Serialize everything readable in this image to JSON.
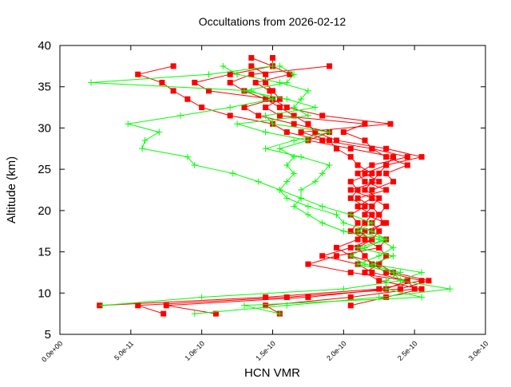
{
  "chart_data": {
    "type": "line",
    "title": "Occultations from 2026-02-12",
    "xlabel": "HCN VMR",
    "ylabel": "Altitude (km)",
    "xlim": [
      0,
      3e-10
    ],
    "ylim": [
      5,
      40
    ],
    "x_ticks": [
      "0.0e+00",
      "5.0e-11",
      "1.0e-10",
      "1.5e-10",
      "2.0e-10",
      "2.5e-10",
      "3.0e-10"
    ],
    "x_tick_values": [
      0,
      5e-11,
      1e-10,
      1.5e-10,
      2e-10,
      2.5e-10,
      3e-10
    ],
    "y_ticks": [
      "5",
      "10",
      "15",
      "20",
      "25",
      "30",
      "35",
      "40"
    ],
    "y_tick_values": [
      5,
      10,
      15,
      20,
      25,
      30,
      35,
      40
    ],
    "grid": false,
    "x_unit_note": "series x values are in units of 1e-10",
    "colors": {
      "red": "#ff0000",
      "green": "#00ff00"
    },
    "series": [
      {
        "color": "red",
        "marker": "square",
        "points": [
          [
            0.28,
            8.5
          ],
          [
            1.45,
            9.5
          ],
          [
            2.25,
            10.5
          ],
          [
            2.55,
            11.5
          ],
          [
            2.3,
            12.5
          ],
          [
            2.2,
            13.5
          ],
          [
            2.15,
            14.5
          ],
          [
            2.1,
            15.5
          ],
          [
            2.2,
            16.5
          ],
          [
            2.25,
            17.5
          ],
          [
            2.2,
            18.5
          ],
          [
            2.25,
            19.5
          ],
          [
            2.2,
            20.5
          ],
          [
            2.25,
            21.5
          ],
          [
            2.15,
            22.5
          ],
          [
            2.2,
            23.5
          ],
          [
            2.25,
            24.5
          ],
          [
            2.3,
            25.5
          ],
          [
            2.55,
            26.5
          ],
          [
            2.3,
            27.5
          ],
          [
            1.95,
            28.5
          ],
          [
            1.8,
            29.5
          ],
          [
            1.75,
            30.5
          ],
          [
            1.65,
            31.5
          ],
          [
            1.55,
            32.5
          ],
          [
            1.45,
            33.5
          ],
          [
            1.3,
            34.5
          ],
          [
            1.2,
            35.5
          ],
          [
            1.35,
            36.5
          ],
          [
            1.9,
            37.5
          ]
        ]
      },
      {
        "color": "red",
        "marker": "square",
        "points": [
          [
            0.73,
            7.5
          ],
          [
            0.55,
            8.5
          ],
          [
            1.6,
            9.5
          ],
          [
            2.4,
            10.5
          ],
          [
            2.6,
            11.5
          ],
          [
            2.35,
            12.5
          ],
          [
            2.25,
            13.5
          ],
          [
            2.05,
            14.5
          ],
          [
            1.95,
            15.5
          ],
          [
            2.1,
            16.5
          ],
          [
            2.15,
            17.5
          ],
          [
            2.3,
            18.5
          ],
          [
            2.15,
            19.5
          ],
          [
            2.2,
            20.5
          ],
          [
            2.1,
            21.5
          ],
          [
            2.3,
            22.5
          ],
          [
            2.15,
            23.5
          ],
          [
            2.1,
            24.5
          ],
          [
            2.2,
            25.5
          ],
          [
            2.45,
            26.5
          ],
          [
            2.2,
            27.5
          ],
          [
            1.85,
            28.5
          ],
          [
            1.6,
            29.5
          ],
          [
            1.5,
            30.5
          ],
          [
            1.2,
            31.5
          ],
          [
            1.0,
            32.5
          ],
          [
            0.9,
            33.5
          ],
          [
            0.8,
            34.5
          ],
          [
            0.72,
            35.5
          ],
          [
            0.55,
            36.5
          ],
          [
            0.8,
            37.5
          ]
        ]
      },
      {
        "color": "red",
        "marker": "square",
        "points": [
          [
            1.1,
            7.5
          ],
          [
            0.75,
            8.5
          ],
          [
            1.75,
            9.5
          ],
          [
            2.3,
            10.5
          ],
          [
            2.45,
            11.5
          ],
          [
            2.2,
            12.5
          ],
          [
            2.1,
            13.5
          ],
          [
            1.85,
            14.5
          ],
          [
            2.05,
            15.5
          ],
          [
            2.2,
            16.5
          ],
          [
            2.1,
            17.5
          ],
          [
            2.15,
            18.5
          ],
          [
            2.2,
            19.5
          ],
          [
            2.1,
            20.5
          ],
          [
            2.2,
            21.5
          ],
          [
            2.05,
            22.5
          ],
          [
            2.25,
            23.5
          ],
          [
            2.15,
            24.5
          ],
          [
            2.3,
            25.5
          ],
          [
            2.35,
            26.5
          ],
          [
            2.05,
            27.5
          ],
          [
            1.75,
            28.5
          ],
          [
            1.9,
            29.5
          ],
          [
            1.65,
            30.5
          ],
          [
            1.4,
            31.5
          ],
          [
            1.3,
            32.5
          ],
          [
            1.5,
            33.5
          ],
          [
            1.05,
            34.5
          ],
          [
            0.95,
            35.5
          ],
          [
            1.2,
            36.5
          ],
          [
            1.5,
            37.5
          ],
          [
            1.35,
            38.5
          ]
        ]
      },
      {
        "color": "red",
        "marker": "square",
        "points": [
          [
            1.55,
            7.5
          ],
          [
            1.45,
            8.5
          ],
          [
            2.05,
            9.5
          ],
          [
            2.5,
            10.5
          ],
          [
            2.45,
            11.5
          ],
          [
            2.05,
            12.5
          ],
          [
            1.75,
            13.5
          ],
          [
            1.95,
            14.5
          ],
          [
            2.25,
            15.5
          ],
          [
            2.15,
            16.5
          ],
          [
            2.05,
            17.5
          ],
          [
            2.1,
            18.5
          ],
          [
            2.05,
            19.5
          ],
          [
            2.15,
            20.5
          ],
          [
            2.05,
            21.5
          ],
          [
            2.1,
            22.5
          ],
          [
            2.05,
            23.5
          ],
          [
            2.2,
            24.5
          ],
          [
            2.1,
            25.5
          ],
          [
            2.05,
            26.5
          ],
          [
            1.95,
            27.5
          ],
          [
            1.9,
            28.5
          ],
          [
            1.7,
            29.5
          ],
          [
            2.33,
            30.5
          ],
          [
            1.85,
            31.5
          ],
          [
            1.6,
            32.5
          ],
          [
            1.5,
            33.5
          ],
          [
            1.48,
            34.5
          ],
          [
            1.38,
            35.5
          ],
          [
            1.62,
            36.5
          ],
          [
            1.5,
            37.5
          ],
          [
            1.5,
            38.5
          ]
        ]
      },
      {
        "color": "red",
        "marker": "square",
        "points": [
          [
            2.05,
            8.5
          ],
          [
            2.3,
            9.5
          ],
          [
            2.55,
            10.5
          ],
          [
            2.25,
            11.5
          ],
          [
            2.15,
            12.5
          ],
          [
            2.25,
            13.5
          ],
          [
            2.3,
            14.5
          ],
          [
            2.25,
            15.5
          ],
          [
            2.3,
            16.5
          ],
          [
            2.2,
            17.5
          ],
          [
            2.28,
            18.5
          ],
          [
            2.25,
            19.5
          ],
          [
            2.3,
            20.5
          ],
          [
            2.2,
            21.5
          ],
          [
            2.2,
            22.5
          ],
          [
            2.35,
            23.5
          ],
          [
            2.3,
            24.5
          ],
          [
            2.45,
            25.5
          ],
          [
            2.3,
            26.5
          ],
          [
            2.2,
            27.5
          ],
          [
            2.15,
            28.5
          ],
          [
            2.0,
            29.5
          ],
          [
            2.15,
            30.5
          ],
          [
            1.55,
            31.5
          ],
          [
            1.45,
            32.5
          ],
          [
            1.55,
            33.5
          ],
          [
            1.5,
            34.5
          ],
          [
            1.45,
            35.5
          ],
          [
            1.45,
            36.5
          ],
          [
            1.35,
            37.5
          ]
        ]
      },
      {
        "color": "green",
        "marker": "plus",
        "points": [
          [
            0.3,
            8.5
          ],
          [
            1.0,
            9.5
          ],
          [
            2.0,
            10.5
          ],
          [
            2.4,
            11.5
          ],
          [
            2.55,
            12.5
          ],
          [
            2.2,
            13.5
          ],
          [
            2.35,
            14.5
          ],
          [
            2.1,
            15.5
          ],
          [
            2.3,
            16.5
          ],
          [
            2.1,
            17.5
          ],
          [
            2.2,
            18.5
          ],
          [
            2.05,
            19.5
          ],
          [
            1.85,
            20.5
          ],
          [
            1.7,
            21.5
          ],
          [
            1.55,
            22.5
          ],
          [
            1.4,
            23.5
          ],
          [
            1.22,
            24.5
          ],
          [
            0.95,
            25.5
          ],
          [
            0.9,
            26.5
          ],
          [
            0.58,
            27.5
          ],
          [
            0.6,
            28.5
          ],
          [
            0.7,
            29.5
          ],
          [
            0.48,
            30.5
          ],
          [
            0.85,
            31.5
          ],
          [
            1.2,
            32.5
          ],
          [
            1.5,
            33.5
          ],
          [
            1.35,
            34.5
          ],
          [
            0.22,
            35.5
          ],
          [
            1.05,
            36.5
          ],
          [
            1.5,
            37.5
          ]
        ]
      },
      {
        "color": "green",
        "marker": "plus",
        "points": [
          [
            0.95,
            7.5
          ],
          [
            1.6,
            8.5
          ],
          [
            2.25,
            9.5
          ],
          [
            2.75,
            10.5
          ],
          [
            2.4,
            11.5
          ],
          [
            2.35,
            12.5
          ],
          [
            2.1,
            13.5
          ],
          [
            2.25,
            14.5
          ],
          [
            2.35,
            15.5
          ],
          [
            2.25,
            16.5
          ],
          [
            2.0,
            17.5
          ],
          [
            1.85,
            18.5
          ],
          [
            1.75,
            19.5
          ],
          [
            1.65,
            20.5
          ],
          [
            1.7,
            21.5
          ],
          [
            1.7,
            22.5
          ],
          [
            1.8,
            23.5
          ],
          [
            1.85,
            24.5
          ],
          [
            1.9,
            25.5
          ],
          [
            1.7,
            26.5
          ],
          [
            1.45,
            27.5
          ],
          [
            1.65,
            28.5
          ],
          [
            1.9,
            29.5
          ],
          [
            1.5,
            30.5
          ],
          [
            1.45,
            31.5
          ],
          [
            1.8,
            32.5
          ],
          [
            1.6,
            33.5
          ],
          [
            1.3,
            34.5
          ],
          [
            1.6,
            35.5
          ],
          [
            1.65,
            36.5
          ],
          [
            1.55,
            37.5
          ]
        ]
      },
      {
        "color": "green",
        "marker": "plus",
        "points": [
          [
            1.55,
            7.5
          ],
          [
            1.3,
            8.5
          ],
          [
            2.55,
            9.5
          ],
          [
            2.3,
            10.5
          ],
          [
            2.3,
            11.5
          ],
          [
            2.4,
            12.5
          ],
          [
            2.15,
            13.5
          ],
          [
            2.05,
            14.5
          ],
          [
            2.15,
            15.5
          ],
          [
            2.3,
            16.5
          ],
          [
            2.2,
            17.5
          ],
          [
            2.0,
            18.5
          ],
          [
            1.95,
            19.5
          ],
          [
            1.75,
            20.5
          ],
          [
            1.6,
            21.5
          ],
          [
            1.55,
            22.5
          ],
          [
            1.6,
            23.5
          ],
          [
            1.65,
            24.5
          ],
          [
            1.6,
            25.5
          ],
          [
            1.65,
            26.5
          ],
          [
            1.55,
            27.5
          ],
          [
            1.75,
            28.5
          ],
          [
            1.45,
            29.5
          ],
          [
            1.25,
            30.5
          ],
          [
            1.75,
            31.5
          ],
          [
            1.65,
            32.5
          ],
          [
            1.7,
            33.5
          ],
          [
            1.75,
            34.5
          ],
          [
            1.55,
            35.5
          ],
          [
            1.25,
            36.5
          ],
          [
            1.15,
            37.5
          ]
        ]
      }
    ]
  }
}
